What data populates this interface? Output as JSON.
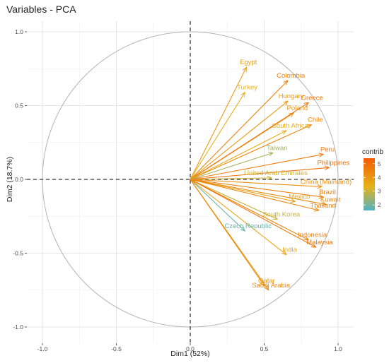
{
  "chart_data": {
    "type": "pca-variables",
    "title": "Variables - PCA",
    "xlabel": "Dim1 (52%)",
    "ylabel": "Dim2 (18.7%)",
    "xlim": [
      -1.0,
      1.0
    ],
    "ylim": [
      -1.0,
      1.0
    ],
    "x_ticks": [
      "-1.0",
      "-0.5",
      "0.0",
      "0.5",
      "1.0"
    ],
    "y_ticks": [
      "-1.0",
      "-0.5",
      "0.0",
      "0.5",
      "1.0"
    ],
    "grid": true,
    "correlation_circle": true,
    "legend": {
      "title": "contrib",
      "position": "right",
      "ticks": [
        "5",
        "4",
        "3",
        "2"
      ],
      "range": [
        1.6,
        5.4
      ],
      "colors": [
        "#4fb3c3",
        "#e6b21a",
        "#f25c05"
      ]
    },
    "variables": [
      {
        "label": "Egypt",
        "x": 0.38,
        "y": 0.76,
        "contrib": 3.8
      },
      {
        "label": "Turkey",
        "x": 0.37,
        "y": 0.59,
        "contrib": 3.3
      },
      {
        "label": "Colombia",
        "x": 0.66,
        "y": 0.67,
        "contrib": 4.4
      },
      {
        "label": "Hungary",
        "x": 0.66,
        "y": 0.53,
        "contrib": 3.9
      },
      {
        "label": "Poland",
        "x": 0.7,
        "y": 0.45,
        "contrib": 4.0
      },
      {
        "label": "Greece",
        "x": 0.8,
        "y": 0.52,
        "contrib": 4.8
      },
      {
        "label": "Chile",
        "x": 0.82,
        "y": 0.37,
        "contrib": 4.3
      },
      {
        "label": "South Africa",
        "x": 0.65,
        "y": 0.33,
        "contrib": 3.4
      },
      {
        "label": "Peru",
        "x": 0.9,
        "y": 0.17,
        "contrib": 4.6
      },
      {
        "label": "Taiwan",
        "x": 0.56,
        "y": 0.18,
        "contrib": 2.6
      },
      {
        "label": "Philippines",
        "x": 0.94,
        "y": 0.08,
        "contrib": 4.9
      },
      {
        "label": "United Arab Emirates",
        "x": 0.55,
        "y": 0.01,
        "contrib": 3.0
      },
      {
        "label": "China (Mainland)",
        "x": 0.89,
        "y": -0.05,
        "contrib": 4.1
      },
      {
        "label": "Brazil",
        "x": 0.9,
        "y": -0.12,
        "contrib": 4.5
      },
      {
        "label": "Mexico",
        "x": 0.71,
        "y": -0.15,
        "contrib": 3.7
      },
      {
        "label": "Kuwait",
        "x": 0.92,
        "y": -0.17,
        "contrib": 4.3
      },
      {
        "label": "Thailand",
        "x": 0.87,
        "y": -0.21,
        "contrib": 4.4
      },
      {
        "label": "South Korea",
        "x": 0.59,
        "y": -0.27,
        "contrib": 3.0
      },
      {
        "label": "Czech Republic",
        "x": 0.37,
        "y": -0.35,
        "contrib": 1.9
      },
      {
        "label": "Indonesia",
        "x": 0.8,
        "y": -0.41,
        "contrib": 4.5
      },
      {
        "label": "Malaysia",
        "x": 0.85,
        "y": -0.46,
        "contrib": 4.7
      },
      {
        "label": "India",
        "x": 0.65,
        "y": -0.51,
        "contrib": 3.6
      },
      {
        "label": "Qatar",
        "x": 0.5,
        "y": -0.72,
        "contrib": 3.9
      },
      {
        "label": "Saudi Arabia",
        "x": 0.53,
        "y": -0.75,
        "contrib": 4.3
      }
    ]
  }
}
